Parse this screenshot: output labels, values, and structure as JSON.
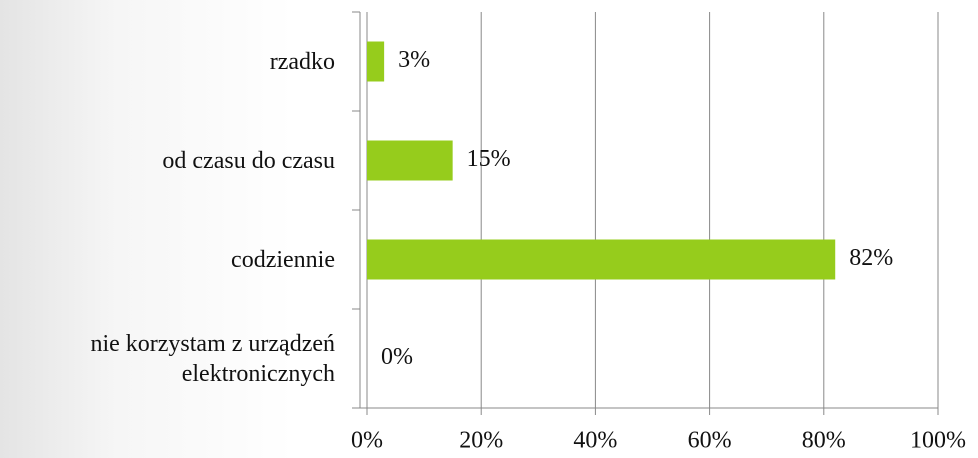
{
  "chart_data": {
    "type": "bar",
    "orientation": "horizontal",
    "categories": [
      "rzadko",
      "od czasu do czasu",
      "codziennie",
      "nie korzystam z urządzeń elektronicznych"
    ],
    "values": [
      3,
      15,
      82,
      0
    ],
    "value_labels": [
      "3%",
      "15%",
      "82%",
      "0%"
    ],
    "color": "#96cc1c",
    "xlim": [
      0,
      100
    ],
    "xticks": [
      {
        "value": 0,
        "label": "0%"
      },
      {
        "value": 20,
        "label": "20%"
      },
      {
        "value": 40,
        "label": "40%"
      },
      {
        "value": 60,
        "label": "60%"
      },
      {
        "value": 80,
        "label": "80%"
      },
      {
        "value": 100,
        "label": "100%"
      }
    ],
    "grid": true
  }
}
